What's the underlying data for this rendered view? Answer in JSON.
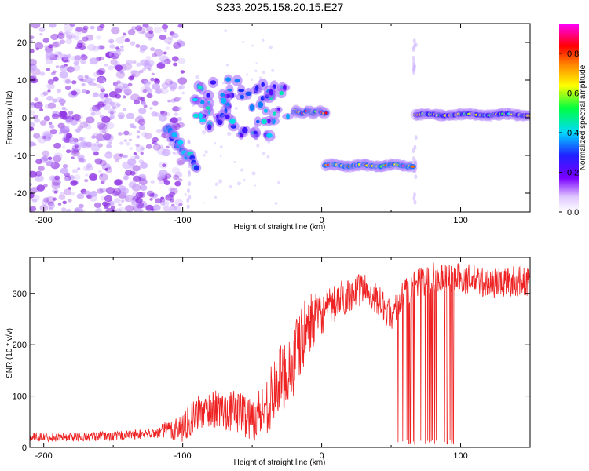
{
  "title": "S233.2025.158.20.15.E27",
  "colors": {
    "snr_line": "#ee2222",
    "frame": "#000000",
    "spec_blob": "#8a2be2"
  },
  "chart_data": [
    {
      "type": "heatmap",
      "xlabel": "Height of straight line (km)",
      "ylabel": "Frequency (Hz)",
      "xlim": [
        -210,
        150
      ],
      "ylim": [
        -25,
        25
      ],
      "x_ticks": [
        -200,
        -100,
        0,
        100
      ],
      "y_ticks": [
        -20,
        -10,
        0,
        10,
        20
      ],
      "colorbar": {
        "label": "Normalized spectral amplitude",
        "range": [
          0,
          0.95
        ],
        "ticks": [
          "0.0",
          "0.2",
          "0.4",
          "0.6",
          "0.8"
        ],
        "tick_values": [
          0.0,
          0.2,
          0.4,
          0.6,
          0.8
        ],
        "colormap": "rainbow (white-purple-blue-cyan-green-yellow-orange-red-magenta)"
      },
      "features": [
        {
          "x_range": [
            -210,
            -100
          ],
          "freq_range": [
            -25,
            25
          ],
          "amplitude": 0.05
        },
        {
          "x_range": [
            -112,
            -90
          ],
          "freq_center": -8,
          "amplitude": 0.3
        },
        {
          "x_range": [
            -92,
            -20
          ],
          "freq_center": 2,
          "amplitude": 0.4
        },
        {
          "x_range": [
            -20,
            3
          ],
          "freq_center": 1.5,
          "amplitude": 0.9
        },
        {
          "x_range": [
            3,
            65
          ],
          "freq_center": -12.7,
          "amplitude": 0.95
        },
        {
          "x_range": [
            68,
            150
          ],
          "freq_center": 0.8,
          "amplitude": 0.75
        }
      ]
    },
    {
      "type": "line",
      "xlabel": "Height of straight line (km)",
      "ylabel": "SNR (10 * v/v)",
      "xlim": [
        -210,
        150
      ],
      "ylim": [
        0,
        370
      ],
      "x_ticks": [
        -200,
        -100,
        0,
        100
      ],
      "y_ticks": [
        0,
        100,
        200,
        300
      ],
      "envelope": [
        {
          "x": -210,
          "y": 20
        },
        {
          "x": -180,
          "y": 20
        },
        {
          "x": -150,
          "y": 22
        },
        {
          "x": -120,
          "y": 28
        },
        {
          "x": -100,
          "y": 40
        },
        {
          "x": -90,
          "y": 65
        },
        {
          "x": -80,
          "y": 75
        },
        {
          "x": -60,
          "y": 70
        },
        {
          "x": -50,
          "y": 55
        },
        {
          "x": -40,
          "y": 80
        },
        {
          "x": -30,
          "y": 130
        },
        {
          "x": -20,
          "y": 165
        },
        {
          "x": -10,
          "y": 240
        },
        {
          "x": 0,
          "y": 260
        },
        {
          "x": 10,
          "y": 280
        },
        {
          "x": 20,
          "y": 300
        },
        {
          "x": 30,
          "y": 310
        },
        {
          "x": 40,
          "y": 290
        },
        {
          "x": 50,
          "y": 255
        },
        {
          "x": 60,
          "y": 300
        },
        {
          "x": 70,
          "y": 320
        },
        {
          "x": 80,
          "y": 330
        },
        {
          "x": 100,
          "y": 330
        },
        {
          "x": 120,
          "y": 320
        },
        {
          "x": 150,
          "y": 325
        }
      ],
      "noise": [
        {
          "x": -210,
          "y": 8
        },
        {
          "x": -120,
          "y": 10
        },
        {
          "x": -100,
          "y": 30
        },
        {
          "x": -50,
          "y": 45
        },
        {
          "x": -20,
          "y": 80
        },
        {
          "x": 0,
          "y": 40
        },
        {
          "x": 40,
          "y": 30
        },
        {
          "x": 100,
          "y": 30
        },
        {
          "x": 150,
          "y": 30
        }
      ],
      "dropouts": [
        {
          "x_range": [
            55,
            98
          ],
          "min_y": 5
        }
      ]
    }
  ]
}
